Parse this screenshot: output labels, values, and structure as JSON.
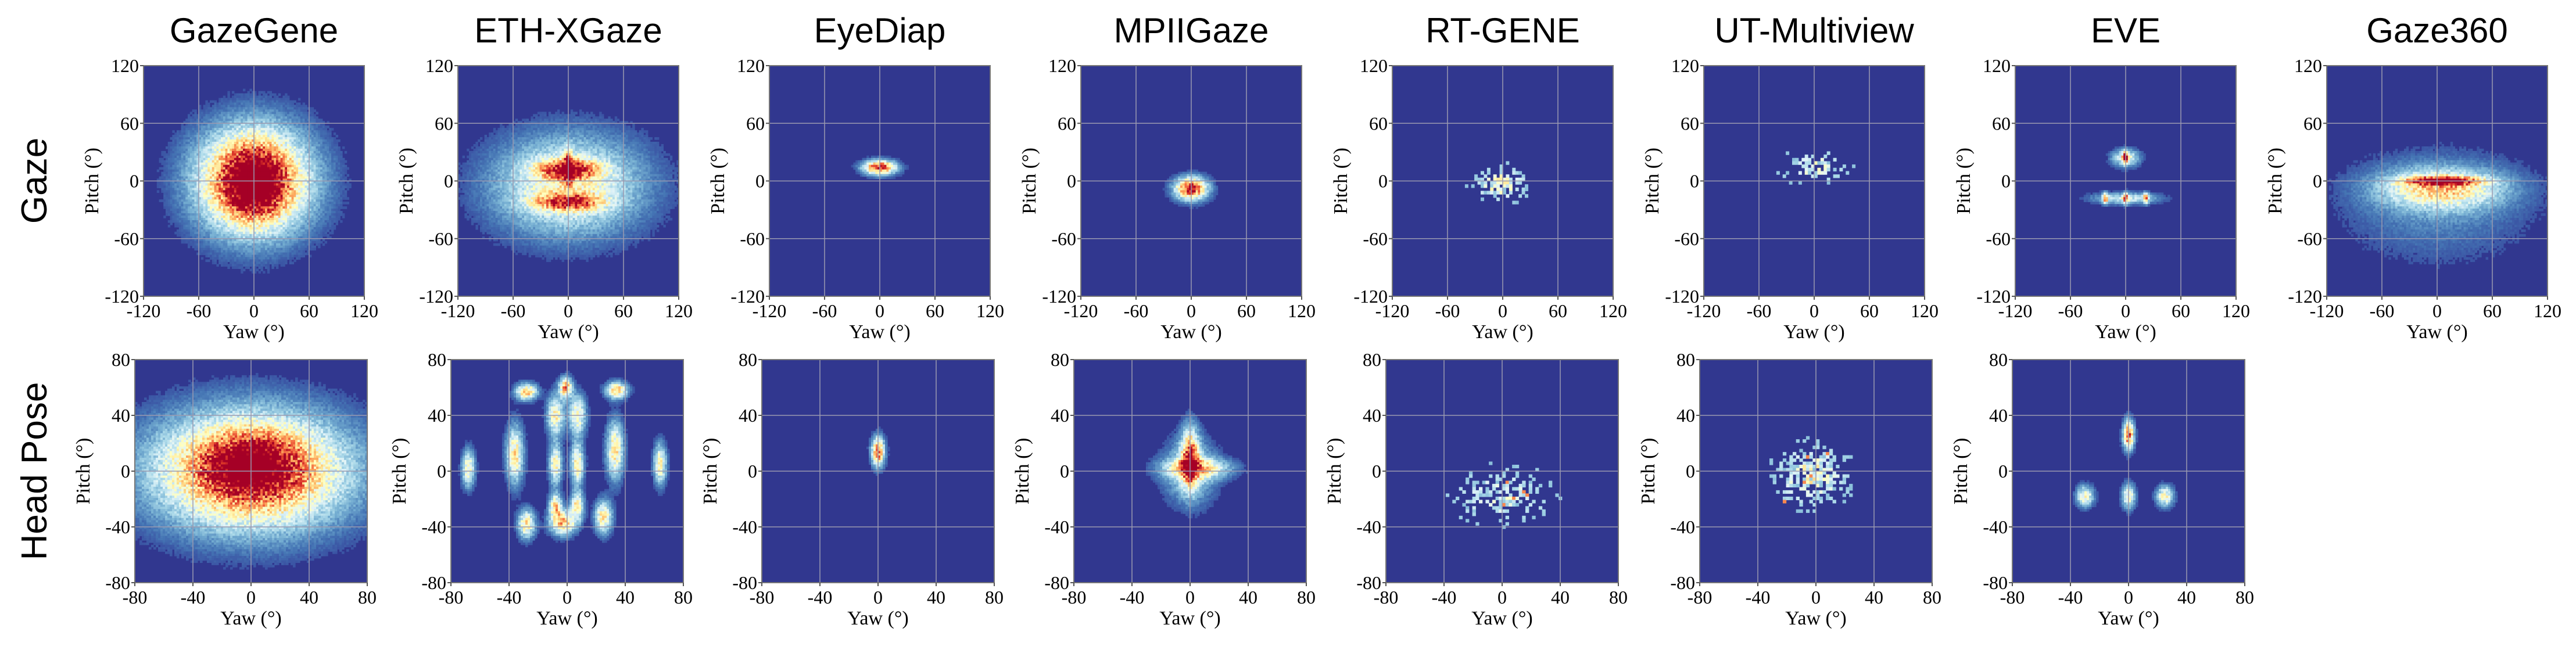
{
  "colors": {
    "background": "#31378f",
    "grid": "#9a9ab0",
    "colormap": [
      "#313695",
      "#4575b4",
      "#74add1",
      "#abd9e9",
      "#e0f3f8",
      "#ffffbf",
      "#fee090",
      "#fdae61",
      "#f46d43",
      "#d73027",
      "#a50026"
    ]
  },
  "row_labels": [
    "Gaze",
    "Head Pose"
  ],
  "chart_data": [
    {
      "type": "heatmap",
      "dataset": "GazeGene",
      "row": "Gaze",
      "title": "GazeGene",
      "xlabel": "Yaw (°)",
      "ylabel": "Pitch (°)",
      "xlim": [
        -120,
        120
      ],
      "ylim": [
        -120,
        120
      ],
      "xticks": [
        "-120",
        "-60",
        "0",
        "60",
        "120"
      ],
      "yticks": [
        "120",
        "60",
        "0",
        "-60",
        "-120"
      ],
      "grid": true,
      "blobs": [
        {
          "x": 0,
          "y": 0,
          "sx": 42,
          "sy": 38,
          "w": 1.0
        },
        {
          "x": 0,
          "y": -2,
          "sx": 22,
          "sy": 22,
          "w": 0.6
        }
      ]
    },
    {
      "type": "heatmap",
      "dataset": "ETH-XGaze",
      "row": "Gaze",
      "title": "ETH-XGaze",
      "xlabel": "Yaw (°)",
      "ylabel": "Pitch (°)",
      "xlim": [
        -120,
        120
      ],
      "ylim": [
        -120,
        120
      ],
      "xticks": [
        "-120",
        "-60",
        "0",
        "60",
        "120"
      ],
      "yticks": [
        "120",
        "60",
        "0",
        "-60",
        "-120"
      ],
      "grid": true,
      "blobs": [
        {
          "x": 0,
          "y": -5,
          "sx": 55,
          "sy": 35,
          "w": 0.55
        },
        {
          "x": 0,
          "y": 12,
          "sx": 22,
          "sy": 7,
          "w": 0.7
        },
        {
          "x": 0,
          "y": -22,
          "sx": 25,
          "sy": 6,
          "w": 0.6
        },
        {
          "x": 0,
          "y": 15,
          "sx": 3,
          "sy": 12,
          "w": 0.6
        }
      ]
    },
    {
      "type": "heatmap",
      "dataset": "EyeDiap",
      "row": "Gaze",
      "title": "EyeDiap",
      "xlabel": "Yaw (°)",
      "ylabel": "Pitch (°)",
      "xlim": [
        -120,
        120
      ],
      "ylim": [
        -120,
        120
      ],
      "xticks": [
        "-120",
        "-60",
        "0",
        "60",
        "120"
      ],
      "yticks": [
        "120",
        "60",
        "0",
        "-60",
        "-120"
      ],
      "grid": true,
      "blobs": [
        {
          "x": 0,
          "y": 14,
          "sx": 12,
          "sy": 5,
          "w": 1.0
        }
      ]
    },
    {
      "type": "heatmap",
      "dataset": "MPIIGaze",
      "row": "Gaze",
      "title": "MPIIGaze",
      "xlabel": "Yaw (°)",
      "ylabel": "Pitch (°)",
      "xlim": [
        -120,
        120
      ],
      "ylim": [
        -120,
        120
      ],
      "xticks": [
        "-120",
        "-60",
        "0",
        "60",
        "120"
      ],
      "yticks": [
        "120",
        "60",
        "0",
        "-60",
        "-120"
      ],
      "grid": true,
      "blobs": [
        {
          "x": 0,
          "y": -8,
          "sx": 12,
          "sy": 8,
          "w": 1.0
        }
      ]
    },
    {
      "type": "heatmap",
      "dataset": "RT-GENE",
      "row": "Gaze",
      "title": "RT-GENE",
      "xlabel": "Yaw (°)",
      "ylabel": "Pitch (°)",
      "xlim": [
        -120,
        120
      ],
      "ylim": [
        -120,
        120
      ],
      "xticks": [
        "-120",
        "-60",
        "0",
        "60",
        "120"
      ],
      "yticks": [
        "120",
        "60",
        "0",
        "-60",
        "-120"
      ],
      "grid": true,
      "blobs": [
        {
          "x": -3,
          "y": -3,
          "sx": 16,
          "sy": 10,
          "w": 0.55
        }
      ],
      "sparse": true
    },
    {
      "type": "heatmap",
      "dataset": "UT-Multiview",
      "row": "Gaze",
      "title": "UT-Multiview",
      "xlabel": "Yaw (°)",
      "ylabel": "Pitch (°)",
      "xlim": [
        -120,
        120
      ],
      "ylim": [
        -120,
        120
      ],
      "xticks": [
        "-120",
        "-60",
        "0",
        "60",
        "120"
      ],
      "yticks": [
        "120",
        "60",
        "0",
        "-60",
        "-120"
      ],
      "grid": true,
      "blobs": [
        {
          "x": 0,
          "y": 15,
          "sx": 20,
          "sy": 10,
          "w": 0.4
        }
      ],
      "sparse": true
    },
    {
      "type": "heatmap",
      "dataset": "EVE",
      "row": "Gaze",
      "title": "EVE",
      "xlabel": "Yaw (°)",
      "ylabel": "Pitch (°)",
      "xlim": [
        -120,
        120
      ],
      "ylim": [
        -120,
        120
      ],
      "xticks": [
        "-120",
        "-60",
        "0",
        "60",
        "120"
      ],
      "yticks": [
        "120",
        "60",
        "0",
        "-60",
        "-120"
      ],
      "grid": true,
      "blobs": [
        {
          "x": 0,
          "y": 24,
          "sx": 10,
          "sy": 6,
          "w": 0.5
        },
        {
          "x": 0,
          "y": 24,
          "sx": 2,
          "sy": 4,
          "w": 0.9
        },
        {
          "x": 0,
          "y": -18,
          "sx": 24,
          "sy": 4,
          "w": 0.4
        },
        {
          "x": -22,
          "y": -18,
          "sx": 2,
          "sy": 4,
          "w": 0.6
        },
        {
          "x": 0,
          "y": -18,
          "sx": 2,
          "sy": 4,
          "w": 0.6
        },
        {
          "x": 22,
          "y": -18,
          "sx": 2,
          "sy": 4,
          "w": 0.6
        }
      ]
    },
    {
      "type": "heatmap",
      "dataset": "Gaze360",
      "row": "Gaze",
      "title": "Gaze360",
      "xlabel": "Yaw (°)",
      "ylabel": "Pitch (°)",
      "xlim": [
        -120,
        120
      ],
      "ylim": [
        -120,
        120
      ],
      "xticks": [
        "-120",
        "-60",
        "0",
        "60",
        "120"
      ],
      "yticks": [
        "120",
        "60",
        "0",
        "-60",
        "-120"
      ],
      "grid": true,
      "blobs": [
        {
          "x": 5,
          "y": -8,
          "sx": 45,
          "sy": 14,
          "w": 0.55
        },
        {
          "x": 5,
          "y": 0,
          "sx": 28,
          "sy": 3,
          "w": 0.8
        },
        {
          "x": 0,
          "y": -25,
          "sx": 70,
          "sy": 40,
          "w": 0.15
        }
      ]
    },
    {
      "type": "heatmap",
      "dataset": "GazeGene",
      "row": "Head Pose",
      "xlabel": "Yaw (°)",
      "ylabel": "Pitch (°)",
      "xlim": [
        -80,
        80
      ],
      "ylim": [
        -80,
        80
      ],
      "xticks": [
        "-80",
        "-40",
        "0",
        "40",
        "80"
      ],
      "yticks": [
        "80",
        "40",
        "0",
        "-40",
        "-80"
      ],
      "grid": true,
      "blobs": [
        {
          "x": 0,
          "y": 0,
          "sx": 45,
          "sy": 28,
          "w": 1.0
        },
        {
          "x": 0,
          "y": 5,
          "sx": 20,
          "sy": 14,
          "w": 0.5
        }
      ]
    },
    {
      "type": "heatmap",
      "dataset": "ETH-XGaze",
      "row": "Head Pose",
      "xlabel": "Yaw (°)",
      "ylabel": "Pitch (°)",
      "xlim": [
        -80,
        80
      ],
      "ylim": [
        -80,
        80
      ],
      "xticks": [
        "-80",
        "-40",
        "0",
        "40",
        "80"
      ],
      "yticks": [
        "80",
        "40",
        "0",
        "-40",
        "-80"
      ],
      "grid": true,
      "blobs": [
        {
          "x": -68,
          "y": 2,
          "sx": 3,
          "sy": 9,
          "w": 0.55
        },
        {
          "x": -36,
          "y": 12,
          "sx": 4,
          "sy": 14,
          "w": 0.6
        },
        {
          "x": -28,
          "y": 57,
          "sx": 5,
          "sy": 4,
          "w": 0.7
        },
        {
          "x": -8,
          "y": 5,
          "sx": 3,
          "sy": 10,
          "w": 0.55
        },
        {
          "x": -8,
          "y": 40,
          "sx": 4,
          "sy": 10,
          "w": 0.55
        },
        {
          "x": -1,
          "y": 60,
          "sx": 3,
          "sy": 5,
          "w": 0.75
        },
        {
          "x": 7,
          "y": 5,
          "sx": 3,
          "sy": 10,
          "w": 0.6
        },
        {
          "x": 7,
          "y": 40,
          "sx": 4,
          "sy": 10,
          "w": 0.55
        },
        {
          "x": 34,
          "y": 58,
          "sx": 5,
          "sy": 4,
          "w": 0.7
        },
        {
          "x": 33,
          "y": 15,
          "sx": 4,
          "sy": 14,
          "w": 0.6
        },
        {
          "x": 64,
          "y": 5,
          "sx": 3,
          "sy": 10,
          "w": 0.55
        },
        {
          "x": -28,
          "y": -38,
          "sx": 4,
          "sy": 7,
          "w": 0.6
        },
        {
          "x": -3,
          "y": -37,
          "sx": 6,
          "sy": 6,
          "w": 0.7
        },
        {
          "x": 7,
          "y": -25,
          "sx": 3,
          "sy": 7,
          "w": 0.6
        },
        {
          "x": -8,
          "y": -25,
          "sx": 3,
          "sy": 6,
          "w": 0.6
        },
        {
          "x": 25,
          "y": -33,
          "sx": 4,
          "sy": 8,
          "w": 0.6
        }
      ]
    },
    {
      "type": "heatmap",
      "dataset": "EyeDiap",
      "row": "Head Pose",
      "xlabel": "Yaw (°)",
      "ylabel": "Pitch (°)",
      "xlim": [
        -80,
        80
      ],
      "ylim": [
        -80,
        80
      ],
      "xticks": [
        "-80",
        "-40",
        "0",
        "40",
        "80"
      ],
      "yticks": [
        "80",
        "40",
        "0",
        "-40",
        "-80"
      ],
      "grid": true,
      "blobs": [
        {
          "x": 0,
          "y": 14,
          "sx": 3,
          "sy": 7,
          "w": 0.9
        }
      ]
    },
    {
      "type": "heatmap",
      "dataset": "MPIIGaze",
      "row": "Head Pose",
      "xlabel": "Yaw (°)",
      "ylabel": "Pitch (°)",
      "xlim": [
        -80,
        80
      ],
      "ylim": [
        -80,
        80
      ],
      "xticks": [
        "-80",
        "-40",
        "0",
        "40",
        "80"
      ],
      "yticks": [
        "80",
        "40",
        "0",
        "-40",
        "-80"
      ],
      "grid": true,
      "blobs": [
        {
          "x": 0,
          "y": 10,
          "sx": 4,
          "sy": 14,
          "w": 0.8
        },
        {
          "x": 5,
          "y": 2,
          "sx": 16,
          "sy": 5,
          "w": 0.5
        },
        {
          "x": 0,
          "y": 0,
          "sx": 12,
          "sy": 16,
          "w": 0.35
        }
      ]
    },
    {
      "type": "heatmap",
      "dataset": "RT-GENE",
      "row": "Head Pose",
      "xlabel": "Yaw (°)",
      "ylabel": "Pitch (°)",
      "xlim": [
        -80,
        80
      ],
      "ylim": [
        -80,
        80
      ],
      "xticks": [
        "-80",
        "-40",
        "0",
        "40",
        "80"
      ],
      "yticks": [
        "80",
        "40",
        "0",
        "-40",
        "-80"
      ],
      "grid": true,
      "blobs": [
        {
          "x": 0,
          "y": -18,
          "sx": 20,
          "sy": 12,
          "w": 0.35
        }
      ],
      "sparse": true
    },
    {
      "type": "heatmap",
      "dataset": "UT-Multiview",
      "row": "Head Pose",
      "xlabel": "Yaw (°)",
      "ylabel": "Pitch (°)",
      "xlim": [
        -80,
        80
      ],
      "ylim": [
        -80,
        80
      ],
      "xticks": [
        "-80",
        "-40",
        "0",
        "40",
        "80"
      ],
      "yticks": [
        "80",
        "40",
        "0",
        "-40",
        "-80"
      ],
      "grid": true,
      "blobs": [
        {
          "x": -3,
          "y": -3,
          "sx": 14,
          "sy": 12,
          "w": 0.55
        }
      ],
      "sparse": true
    },
    {
      "type": "heatmap",
      "dataset": "EVE",
      "row": "Head Pose",
      "xlabel": "Yaw (°)",
      "ylabel": "Pitch (°)",
      "xlim": [
        -80,
        80
      ],
      "ylim": [
        -80,
        80
      ],
      "xticks": [
        "-80",
        "-40",
        "0",
        "40",
        "80"
      ],
      "yticks": [
        "80",
        "40",
        "0",
        "-40",
        "-80"
      ],
      "grid": true,
      "blobs": [
        {
          "x": 0,
          "y": 26,
          "sx": 2.5,
          "sy": 7,
          "w": 0.9
        },
        {
          "x": -30,
          "y": -18,
          "sx": 4,
          "sy": 5,
          "w": 0.55
        },
        {
          "x": 0,
          "y": -18,
          "sx": 3,
          "sy": 6,
          "w": 0.55
        },
        {
          "x": 25,
          "y": -18,
          "sx": 4,
          "sy": 5,
          "w": 0.55
        }
      ]
    }
  ]
}
